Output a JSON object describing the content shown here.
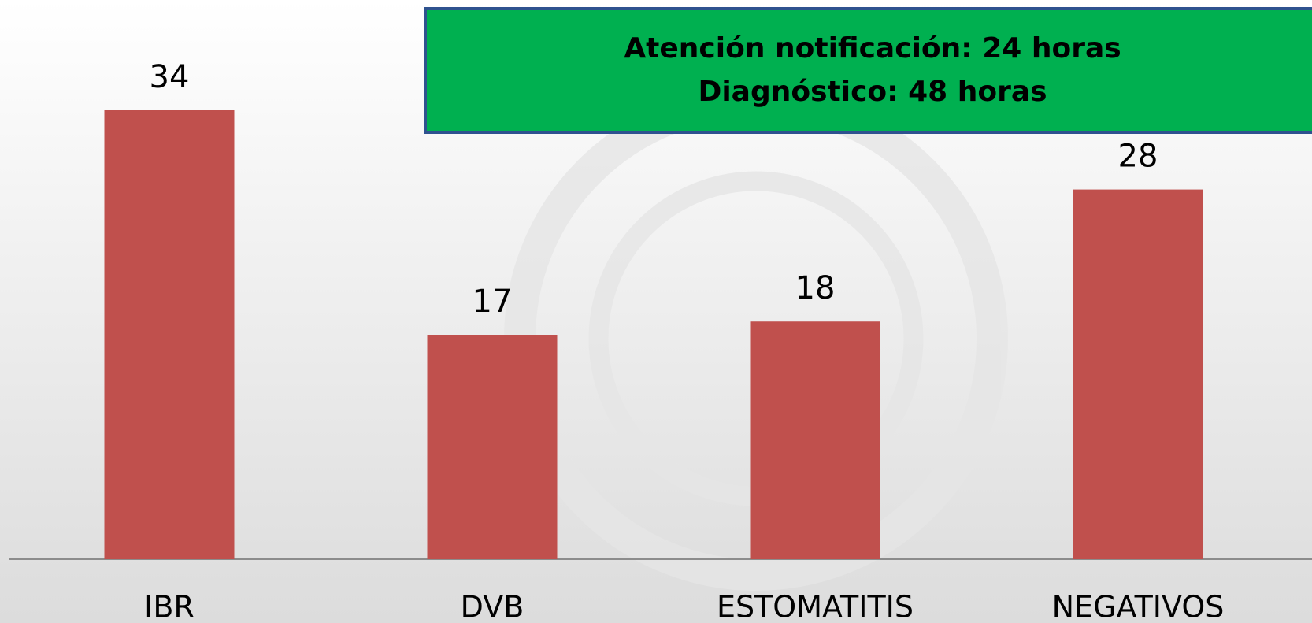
{
  "chart_data": {
    "type": "bar",
    "categories": [
      "IBR",
      "DVB",
      "ESTOMATITIS",
      "NEGATIVOS"
    ],
    "values": [
      34,
      17,
      18,
      28
    ],
    "color": "#c0504d",
    "annotation": [
      "Atención notificación: 24 horas",
      "Diagnóstico: 48 horas"
    ]
  }
}
